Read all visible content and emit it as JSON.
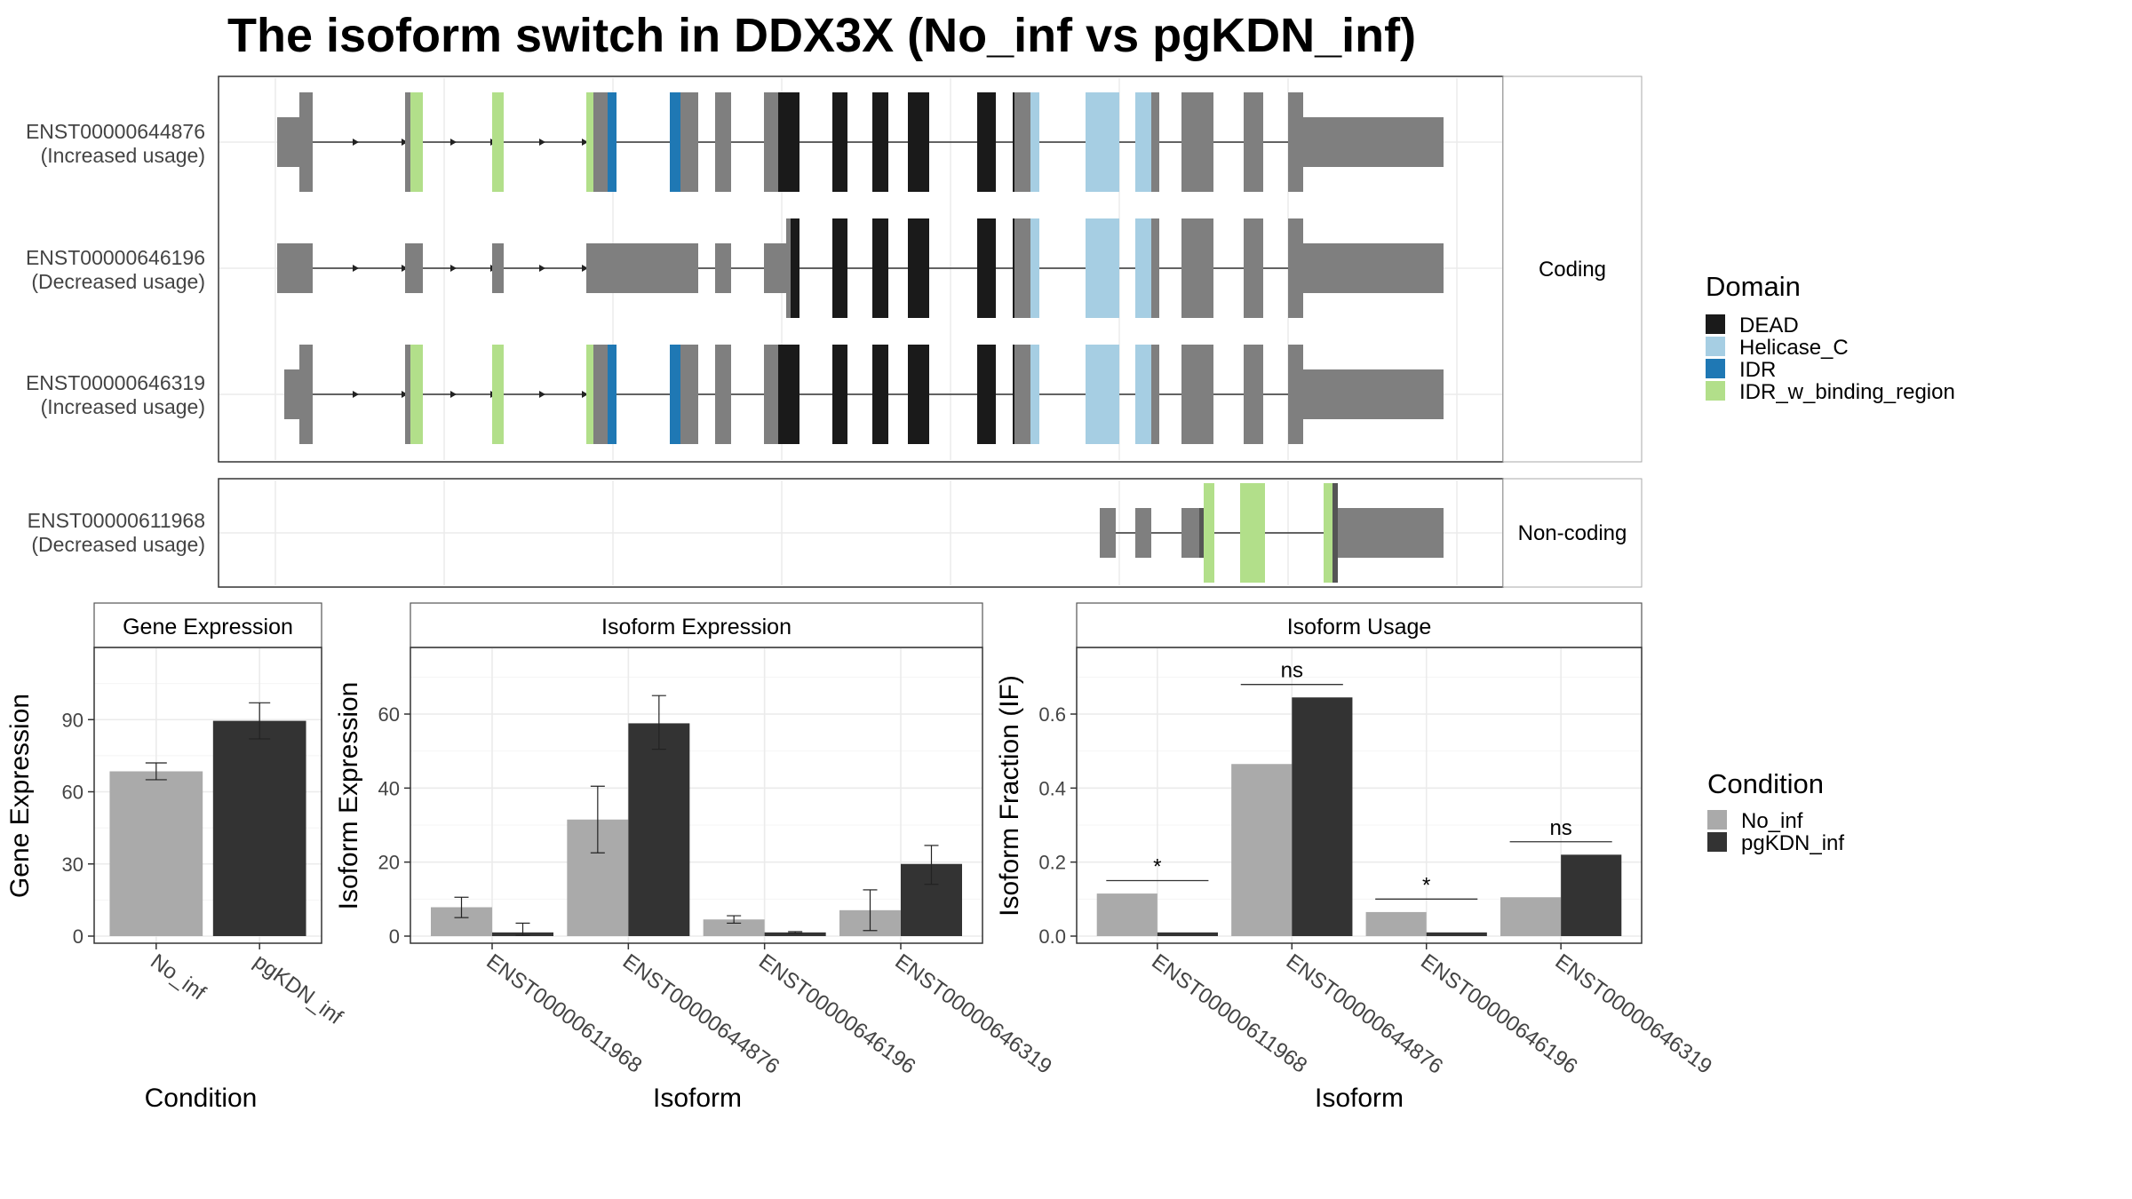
{
  "title": "The isoform switch in DDX3X (No_inf vs pgKDN_inf)",
  "colors": {
    "DEAD": "#1a1a1a",
    "Helicase_C": "#a6cee3",
    "IDR": "#1f78b4",
    "IDR_w_binding_region": "#b2df8a",
    "exon": "#7f7f7f",
    "No_inf": "#aaaaaa",
    "pgKDN_inf": "#333333"
  },
  "structure": {
    "facets": [
      "Coding",
      "Non-coding"
    ],
    "isoforms": [
      {
        "id": "ENST00000644876",
        "note": "(Increased usage)",
        "facet": "Coding"
      },
      {
        "id": "ENST00000646196",
        "note": "(Decreased usage)",
        "facet": "Coding"
      },
      {
        "id": "ENST00000646319",
        "note": "(Increased usage)",
        "facet": "Coding"
      },
      {
        "id": "ENST00000611968",
        "note": "(Decreased usage)",
        "facet": "Non-coding"
      }
    ]
  },
  "legend_domain": {
    "title": "Domain",
    "items": [
      "DEAD",
      "Helicase_C",
      "IDR",
      "IDR_w_binding_region"
    ]
  },
  "legend_condition": {
    "title": "Condition",
    "items": [
      "No_inf",
      "pgKDN_inf"
    ]
  },
  "chart_data": [
    {
      "type": "bar",
      "title": "Gene Expression",
      "xlabel": "Condition",
      "ylabel": "Gene Expression",
      "categories": [
        "No_inf",
        "pgKDN_inf"
      ],
      "values": [
        68.5,
        89.5
      ],
      "errors": [
        [
          65,
          72
        ],
        [
          82,
          97
        ]
      ],
      "ylim": [
        0,
        120
      ],
      "yticks": [
        0,
        30,
        60,
        90
      ],
      "grid": true
    },
    {
      "type": "bar",
      "title": "Isoform Expression",
      "xlabel": "Isoform",
      "ylabel": "Isoform Expression",
      "categories": [
        "ENST00000611968",
        "ENST00000644876",
        "ENST00000646196",
        "ENST00000646319"
      ],
      "series": [
        {
          "name": "No_inf",
          "values": [
            7.8,
            31.5,
            4.5,
            7.0
          ],
          "errors": [
            [
              5.0,
              10.5
            ],
            [
              22.5,
              40.5
            ],
            [
              3.5,
              5.5
            ],
            [
              1.5,
              12.5
            ]
          ]
        },
        {
          "name": "pgKDN_inf",
          "values": [
            1.0,
            57.5,
            1.0,
            19.5
          ],
          "errors": [
            [
              0.2,
              3.5
            ],
            [
              50.5,
              65.0
            ],
            [
              0.8,
              1.2
            ],
            [
              14.0,
              24.5
            ]
          ]
        }
      ],
      "ylim": [
        0,
        78
      ],
      "yticks": [
        0,
        20,
        40,
        60
      ],
      "grid": true
    },
    {
      "type": "bar",
      "title": "Isoform Usage",
      "xlabel": "Isoform",
      "ylabel": "Isoform Fraction (IF)",
      "categories": [
        "ENST00000611968",
        "ENST00000644876",
        "ENST00000646196",
        "ENST00000646319"
      ],
      "series": [
        {
          "name": "No_inf",
          "values": [
            0.115,
            0.465,
            0.065,
            0.105
          ]
        },
        {
          "name": "pgKDN_inf",
          "values": [
            0.01,
            0.645,
            0.01,
            0.22
          ]
        }
      ],
      "significance": [
        {
          "category": "ENST00000611968",
          "label": "*",
          "y": 0.15
        },
        {
          "category": "ENST00000644876",
          "label": "ns",
          "y": 0.68
        },
        {
          "category": "ENST00000646196",
          "label": "*",
          "y": 0.1
        },
        {
          "category": "ENST00000646319",
          "label": "ns",
          "y": 0.255
        }
      ],
      "ylim": [
        0,
        0.78
      ],
      "yticks": [
        0.0,
        0.2,
        0.4,
        0.6
      ],
      "ytick_labels": [
        "0.0",
        "0.2",
        "0.4",
        "0.6"
      ],
      "grid": true
    }
  ]
}
